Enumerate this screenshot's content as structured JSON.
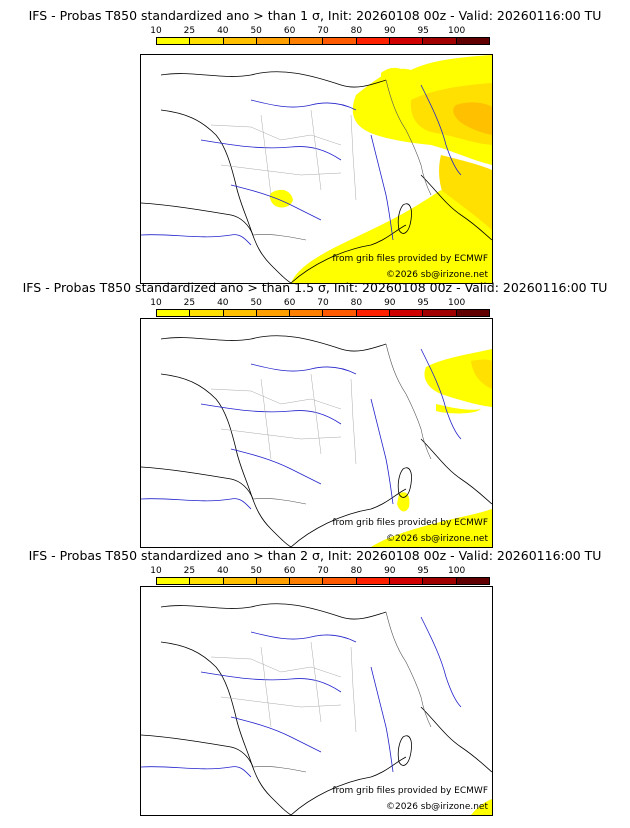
{
  "legend": {
    "labels": [
      "10",
      "25",
      "40",
      "50",
      "60",
      "70",
      "80",
      "90",
      "95",
      "100"
    ],
    "colors": [
      "#ffff00",
      "#ffe000",
      "#ffc000",
      "#ffa000",
      "#ff8000",
      "#ff5a00",
      "#ff2000",
      "#d00000",
      "#a00000",
      "#600000"
    ]
  },
  "panels": [
    {
      "title": "IFS - Probas T850  standardized ano > than 1 σ, Init: 20260108 00z - Valid: 20260116:00 TU",
      "credit_source": "from grib files provided by ECMWF",
      "credit_copyright": "©2026 sb@irizone.net",
      "probability_coverage": "high"
    },
    {
      "title": "IFS - Probas T850  standardized ano > than 1.5 σ, Init: 20260108 00z - Valid: 20260116:00 TU",
      "credit_source": "from grib files provided by ECMWF",
      "credit_copyright": "©2026 sb@irizone.net",
      "probability_coverage": "medium"
    },
    {
      "title": "IFS - Probas T850  standardized ano > than 2 σ, Init: 20260108 00z - Valid: 20260116:00 TU",
      "credit_source": "from grib files provided by ECMWF",
      "credit_copyright": "©2026 sb@irizone.net",
      "probability_coverage": "low"
    }
  ]
}
